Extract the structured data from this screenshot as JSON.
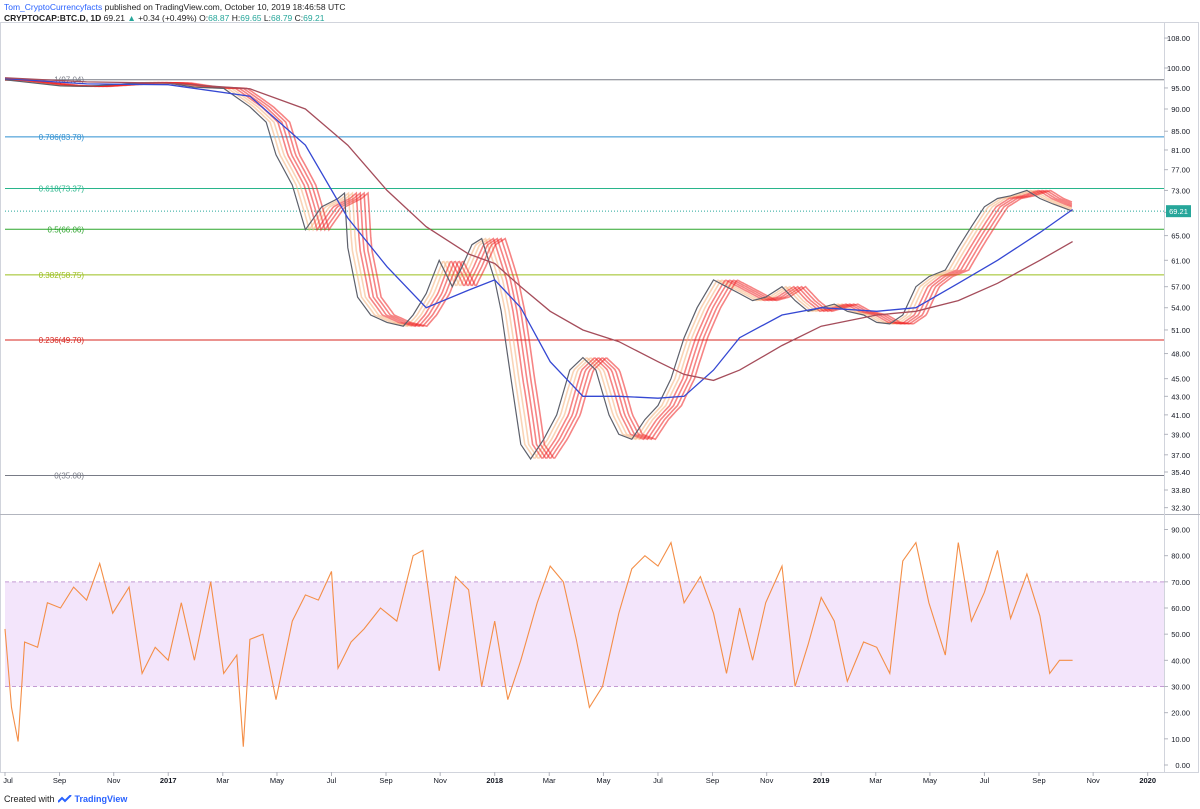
{
  "header": {
    "author": "Tom_CryptoCurrencyfacts",
    "published": " published on TradingView.com, October 10, 2019 18:46:58 UTC",
    "symbol": "CRYPTOCAP:BTC.D, 1D",
    "last": "69.21",
    "arrow": "▲",
    "change": "+0.34 (+0.49%)",
    "o_label": "O:",
    "o": "68.87",
    "h_label": "H:",
    "h": "69.65",
    "l_label": "L:",
    "l": "68.79",
    "c_label": "C:",
    "c": "69.21"
  },
  "footer": {
    "created": "Created with",
    "brand": "TradingView"
  },
  "price_label": "69.21",
  "colors": {
    "up_candle": "#26a69a",
    "down_candle": "#ef5350",
    "rsi_line": "#f48e47",
    "rsi_band": "#f3e5fb",
    "ema_fast_blue": "#3548d3",
    "ema_slow_brown": "#a54d5b",
    "ribbon_red": "#ef1f1f",
    "ribbon_green": "#3cdf3c",
    "ribbon_cyan": "#44e0e0",
    "ribbon_orange": "#f5b07a",
    "fib_0786": "#2d8fd1",
    "fib_0618": "#28b58b",
    "fib_05": "#2da52d",
    "fib_0382": "#9bbf1e",
    "fib_0236": "#d7261f",
    "fib_grey": "#787b86"
  },
  "chart_data": [
    {
      "type": "line",
      "title": "CRYPTOCAP:BTC.D, 1D",
      "x_ticks": [
        "Jul",
        "Sep",
        "Nov",
        "2017",
        "Mar",
        "May",
        "Jul",
        "Sep",
        "Nov",
        "2018",
        "Mar",
        "May",
        "Jul",
        "Sep",
        "Nov",
        "2019",
        "Mar",
        "May",
        "Jul",
        "Sep",
        "Nov",
        "2020"
      ],
      "y_ticks": [
        "108.00",
        "100.00",
        "95.00",
        "90.00",
        "85.00",
        "81.00",
        "77.00",
        "73.00",
        "69.00",
        "65.00",
        "61.00",
        "57.00",
        "54.00",
        "51.00",
        "48.00",
        "45.00",
        "43.00",
        "41.00",
        "39.00",
        "37.00",
        "35.40",
        "33.80",
        "32.30"
      ],
      "y_scale": "log",
      "ylim": [
        31.6,
        112
      ],
      "fib_levels": [
        {
          "label": "1(97.04)",
          "value": 97.04
        },
        {
          "label": "0.786(83.78)",
          "value": 83.78
        },
        {
          "label": "0.618(73.37)",
          "value": 73.37
        },
        {
          "label": "0.5(66.06)",
          "value": 66.06
        },
        {
          "label": "0.382(58.75)",
          "value": 58.75
        },
        {
          "label": "0.236(49.70)",
          "value": 49.7
        },
        {
          "label": "0(35.08)",
          "value": 35.08
        }
      ],
      "last_price": 69.21,
      "series": [
        {
          "values": [
            [
              2016.5,
              97.0
            ],
            [
              2016.58,
              96.3
            ],
            [
              2016.67,
              95.5
            ],
            [
              2016.75,
              95.4
            ],
            [
              2016.83,
              95.8
            ],
            [
              2016.92,
              96.3
            ],
            [
              2017.0,
              96.2
            ],
            [
              2017.08,
              95.2
            ],
            [
              2017.17,
              94.9
            ],
            [
              2017.25,
              90.5
            ],
            [
              2017.3,
              87.0
            ],
            [
              2017.33,
              80.0
            ],
            [
              2017.38,
              74.0
            ],
            [
              2017.42,
              66.0
            ],
            [
              2017.47,
              70.0
            ],
            [
              2017.52,
              71.5
            ],
            [
              2017.54,
              72.5
            ],
            [
              2017.55,
              63.0
            ],
            [
              2017.58,
              55.5
            ],
            [
              2017.62,
              53.0
            ],
            [
              2017.67,
              52.0
            ],
            [
              2017.72,
              51.5
            ],
            [
              2017.75,
              53.0
            ],
            [
              2017.79,
              56.0
            ],
            [
              2017.83,
              61.0
            ],
            [
              2017.87,
              57.0
            ],
            [
              2017.9,
              60.0
            ],
            [
              2017.93,
              63.5
            ],
            [
              2017.96,
              64.5
            ],
            [
              2018.0,
              58.0
            ],
            [
              2018.02,
              53.5
            ],
            [
              2018.05,
              45.0
            ],
            [
              2018.08,
              38.0
            ],
            [
              2018.11,
              36.6
            ],
            [
              2018.15,
              38.5
            ],
            [
              2018.19,
              41.0
            ],
            [
              2018.23,
              46.0
            ],
            [
              2018.27,
              47.5
            ],
            [
              2018.31,
              46.0
            ],
            [
              2018.35,
              41.0
            ],
            [
              2018.38,
              39.0
            ],
            [
              2018.42,
              38.5
            ],
            [
              2018.46,
              40.5
            ],
            [
              2018.5,
              42.0
            ],
            [
              2018.54,
              45.0
            ],
            [
              2018.58,
              50.0
            ],
            [
              2018.62,
              54.0
            ],
            [
              2018.67,
              58.0
            ],
            [
              2018.71,
              57.0
            ],
            [
              2018.75,
              56.0
            ],
            [
              2018.79,
              55.0
            ],
            [
              2018.83,
              55.5
            ],
            [
              2018.88,
              57.0
            ],
            [
              2018.92,
              55.0
            ],
            [
              2018.96,
              53.5
            ],
            [
              2019.0,
              54.0
            ],
            [
              2019.04,
              54.5
            ],
            [
              2019.08,
              53.5
            ],
            [
              2019.13,
              53.0
            ],
            [
              2019.17,
              52.0
            ],
            [
              2019.21,
              51.8
            ],
            [
              2019.25,
              53.0
            ],
            [
              2019.29,
              57.0
            ],
            [
              2019.33,
              58.5
            ],
            [
              2019.38,
              59.5
            ],
            [
              2019.42,
              63.0
            ],
            [
              2019.46,
              66.5
            ],
            [
              2019.5,
              70.0
            ],
            [
              2019.54,
              71.5
            ],
            [
              2019.58,
              72.0
            ],
            [
              2019.63,
              73.0
            ],
            [
              2019.67,
              71.5
            ],
            [
              2019.71,
              70.5
            ],
            [
              2019.77,
              69.21
            ]
          ]
        },
        {
          "values": [
            [
              2016.5,
              97.3
            ],
            [
              2016.75,
              96.0
            ],
            [
              2017.0,
              95.8
            ],
            [
              2017.25,
              93.0
            ],
            [
              2017.42,
              82.0
            ],
            [
              2017.55,
              68.0
            ],
            [
              2017.67,
              60.0
            ],
            [
              2017.79,
              54.0
            ],
            [
              2017.92,
              56.5
            ],
            [
              2018.0,
              58.0
            ],
            [
              2018.08,
              54.0
            ],
            [
              2018.17,
              47.0
            ],
            [
              2018.27,
              43.0
            ],
            [
              2018.38,
              43.0
            ],
            [
              2018.5,
              42.8
            ],
            [
              2018.58,
              43.0
            ],
            [
              2018.67,
              46.0
            ],
            [
              2018.75,
              50.0
            ],
            [
              2018.88,
              53.0
            ],
            [
              2019.0,
              54.0
            ],
            [
              2019.17,
              53.5
            ],
            [
              2019.29,
              54.0
            ],
            [
              2019.42,
              57.5
            ],
            [
              2019.54,
              61.0
            ],
            [
              2019.67,
              65.5
            ],
            [
              2019.77,
              69.5
            ]
          ]
        },
        {
          "values": [
            [
              2016.5,
              97.5
            ],
            [
              2016.75,
              96.5
            ],
            [
              2017.0,
              96.2
            ],
            [
              2017.25,
              94.8
            ],
            [
              2017.42,
              90.0
            ],
            [
              2017.55,
              82.0
            ],
            [
              2017.67,
              73.0
            ],
            [
              2017.79,
              66.5
            ],
            [
              2017.92,
              62.0
            ],
            [
              2018.0,
              60.5
            ],
            [
              2018.08,
              57.0
            ],
            [
              2018.17,
              53.5
            ],
            [
              2018.27,
              51.0
            ],
            [
              2018.38,
              49.5
            ],
            [
              2018.5,
              47.0
            ],
            [
              2018.58,
              45.5
            ],
            [
              2018.67,
              44.8
            ],
            [
              2018.75,
              46.0
            ],
            [
              2018.88,
              49.0
            ],
            [
              2019.0,
              51.5
            ],
            [
              2019.17,
              53.0
            ],
            [
              2019.29,
              53.5
            ],
            [
              2019.42,
              55.0
            ],
            [
              2019.54,
              57.5
            ],
            [
              2019.67,
              61.0
            ],
            [
              2019.77,
              64.0
            ]
          ]
        }
      ]
    },
    {
      "type": "line",
      "y_ticks": [
        "90.00",
        "80.00",
        "70.00",
        "60.00",
        "50.00",
        "40.00",
        "30.00",
        "20.00",
        "10.00",
        "0.00"
      ],
      "ylim": [
        0,
        95
      ],
      "band": [
        30,
        70
      ],
      "series": [
        {
          "values": [
            [
              2016.5,
              52
            ],
            [
              2016.52,
              22
            ],
            [
              2016.54,
              9
            ],
            [
              2016.56,
              47
            ],
            [
              2016.6,
              45
            ],
            [
              2016.63,
              62
            ],
            [
              2016.67,
              60
            ],
            [
              2016.71,
              68
            ],
            [
              2016.75,
              63
            ],
            [
              2016.79,
              77
            ],
            [
              2016.83,
              58
            ],
            [
              2016.88,
              68
            ],
            [
              2016.92,
              35
            ],
            [
              2016.96,
              45
            ],
            [
              2017.0,
              40
            ],
            [
              2017.04,
              62
            ],
            [
              2017.08,
              40
            ],
            [
              2017.13,
              70
            ],
            [
              2017.17,
              35
            ],
            [
              2017.21,
              42
            ],
            [
              2017.23,
              7
            ],
            [
              2017.25,
              48
            ],
            [
              2017.29,
              50
            ],
            [
              2017.33,
              25
            ],
            [
              2017.38,
              55
            ],
            [
              2017.42,
              65
            ],
            [
              2017.46,
              63
            ],
            [
              2017.5,
              74
            ],
            [
              2017.52,
              37
            ],
            [
              2017.56,
              47
            ],
            [
              2017.6,
              52
            ],
            [
              2017.65,
              60
            ],
            [
              2017.7,
              55
            ],
            [
              2017.75,
              80
            ],
            [
              2017.78,
              82
            ],
            [
              2017.83,
              36
            ],
            [
              2017.88,
              72
            ],
            [
              2017.92,
              67
            ],
            [
              2017.96,
              30
            ],
            [
              2018.0,
              55
            ],
            [
              2018.04,
              25
            ],
            [
              2018.08,
              40
            ],
            [
              2018.13,
              62
            ],
            [
              2018.17,
              76
            ],
            [
              2018.21,
              70
            ],
            [
              2018.25,
              48
            ],
            [
              2018.29,
              22
            ],
            [
              2018.33,
              30
            ],
            [
              2018.38,
              58
            ],
            [
              2018.42,
              75
            ],
            [
              2018.46,
              80
            ],
            [
              2018.5,
              76
            ],
            [
              2018.54,
              85
            ],
            [
              2018.58,
              62
            ],
            [
              2018.63,
              72
            ],
            [
              2018.67,
              58
            ],
            [
              2018.71,
              35
            ],
            [
              2018.75,
              60
            ],
            [
              2018.79,
              40
            ],
            [
              2018.83,
              62
            ],
            [
              2018.88,
              76
            ],
            [
              2018.92,
              30
            ],
            [
              2018.96,
              46
            ],
            [
              2019.0,
              64
            ],
            [
              2019.04,
              55
            ],
            [
              2019.08,
              32
            ],
            [
              2019.13,
              47
            ],
            [
              2019.17,
              45
            ],
            [
              2019.21,
              35
            ],
            [
              2019.25,
              78
            ],
            [
              2019.29,
              85
            ],
            [
              2019.33,
              62
            ],
            [
              2019.38,
              42
            ],
            [
              2019.42,
              85
            ],
            [
              2019.46,
              55
            ],
            [
              2019.5,
              66
            ],
            [
              2019.54,
              82
            ],
            [
              2019.58,
              56
            ],
            [
              2019.63,
              73
            ],
            [
              2019.67,
              57
            ],
            [
              2019.7,
              35
            ],
            [
              2019.73,
              40
            ],
            [
              2019.77,
              40
            ]
          ]
        }
      ]
    }
  ]
}
